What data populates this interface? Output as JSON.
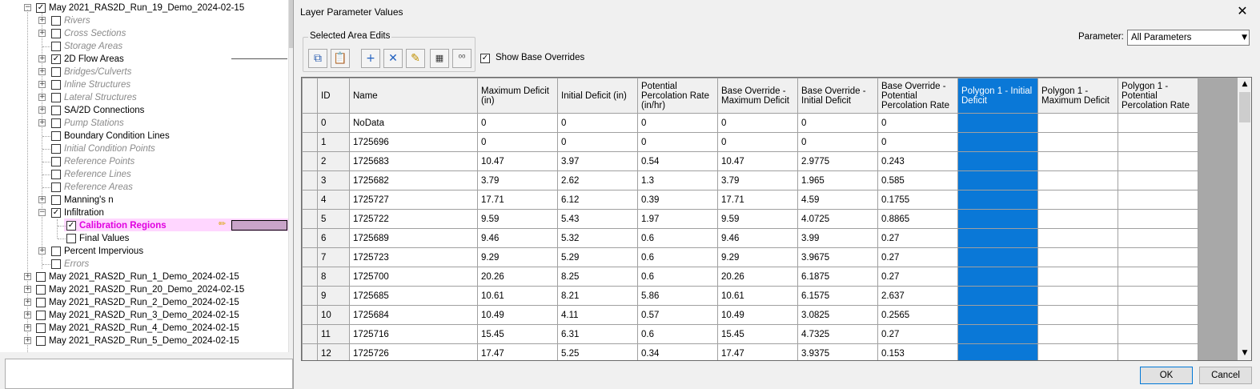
{
  "tree": {
    "root_label": "May 2021_RAS2D_Run_19_Demo_2024-02-15",
    "children": [
      {
        "label": "Rivers",
        "style": "gray",
        "expander": true,
        "checked": false
      },
      {
        "label": "Cross Sections",
        "style": "gray",
        "expander": true,
        "checked": false
      },
      {
        "label": "Storage Areas",
        "style": "gray",
        "expander": false,
        "checked": false
      },
      {
        "label": "2D Flow Areas",
        "style": "normal",
        "expander": true,
        "checked": true
      },
      {
        "label": "Bridges/Culverts",
        "style": "gray",
        "expander": true,
        "checked": false
      },
      {
        "label": "Inline Structures",
        "style": "gray",
        "expander": true,
        "checked": false
      },
      {
        "label": "Lateral Structures",
        "style": "gray",
        "expander": true,
        "checked": false
      },
      {
        "label": "SA/2D Connections",
        "style": "normal",
        "expander": true,
        "checked": false
      },
      {
        "label": "Pump Stations",
        "style": "gray",
        "expander": true,
        "checked": false
      },
      {
        "label": "Boundary Condition Lines",
        "style": "normal",
        "expander": false,
        "checked": false
      },
      {
        "label": "Initial Condition Points",
        "style": "gray",
        "expander": false,
        "checked": false
      },
      {
        "label": "Reference Points",
        "style": "gray",
        "expander": false,
        "checked": false
      },
      {
        "label": "Reference Lines",
        "style": "gray",
        "expander": false,
        "checked": false
      },
      {
        "label": "Reference Areas",
        "style": "gray",
        "expander": false,
        "checked": false
      },
      {
        "label": "Manning's n",
        "style": "normal",
        "expander": true,
        "checked": false
      },
      {
        "label": "Infiltration",
        "style": "normal",
        "expander": "minus",
        "checked": true
      }
    ],
    "infiltration_children": [
      {
        "label": "Calibration Regions",
        "style": "pink",
        "checked": true
      },
      {
        "label": "Final Values",
        "style": "normal",
        "checked": false
      }
    ],
    "after_children": [
      {
        "label": "Percent Impervious",
        "style": "normal",
        "expander": true,
        "checked": false
      },
      {
        "label": "Errors",
        "style": "gray",
        "expander": false,
        "checked": false
      }
    ],
    "runs": [
      "May 2021_RAS2D_Run_1_Demo_2024-02-15",
      "May 2021_RAS2D_Run_20_Demo_2024-02-15",
      "May 2021_RAS2D_Run_2_Demo_2024-02-15",
      "May 2021_RAS2D_Run_3_Demo_2024-02-15",
      "May 2021_RAS2D_Run_4_Demo_2024-02-15",
      "May 2021_RAS2D_Run_5_Demo_2024-02-15"
    ],
    "checkmark": "✓",
    "expand_plus": "+",
    "expand_minus": "−"
  },
  "dialog": {
    "title": "Layer Parameter Values",
    "close_glyph": "✕",
    "group_label": "Selected Area Edits",
    "toolbar_icons": [
      {
        "name": "copy-icon",
        "glyph": "⧉",
        "color": "#2a5db0"
      },
      {
        "name": "paste-icon",
        "glyph": "📋",
        "color": "#a0702a"
      },
      {
        "name": "add-row-icon",
        "glyph": "+",
        "color": "#1f5fbf"
      },
      {
        "name": "delete-row-icon",
        "glyph": "✕",
        "color": "#1f5fbf"
      },
      {
        "name": "fill-icon",
        "glyph": "✎",
        "color": "#c09000"
      },
      {
        "name": "interpolate-icon",
        "glyph": "▦",
        "color": "#333333"
      },
      {
        "name": "decimal-icon",
        "glyph": "⁰⁰",
        "color": "#333333"
      }
    ],
    "show_base_overrides_label": "Show Base Overrides",
    "show_base_overrides_checked": true,
    "parameter_label": "Parameter:",
    "parameter_value": "All Parameters",
    "ok_label": "OK",
    "cancel_label": "Cancel",
    "selection_color": "#0a78d7"
  },
  "grid": {
    "columns": [
      "ID",
      "Name",
      "Maximum Deficit (in)",
      "Initial Deficit (in)",
      "Potential Percolation Rate (in/hr)",
      "Base Override - Maximum Deficit",
      "Base Override - Initial Deficit",
      "Base Override - Potential Percolation Rate",
      "Polygon 1 - Initial Deficit",
      "Polygon 1 - Maximum Deficit",
      "Polygon 1 - Potential Percolation Rate"
    ],
    "selected_column": 8,
    "rows": [
      [
        "0",
        "NoData",
        "0",
        "0",
        "0",
        "0",
        "0",
        "0",
        "",
        "",
        ""
      ],
      [
        "1",
        "1725696",
        "0",
        "0",
        "0",
        "0",
        "0",
        "0",
        "",
        "",
        ""
      ],
      [
        "2",
        "1725683",
        "10.47",
        "3.97",
        "0.54",
        "10.47",
        "2.9775",
        "0.243",
        "",
        "",
        ""
      ],
      [
        "3",
        "1725682",
        "3.79",
        "2.62",
        "1.3",
        "3.79",
        "1.965",
        "0.585",
        "",
        "",
        ""
      ],
      [
        "4",
        "1725727",
        "17.71",
        "6.12",
        "0.39",
        "17.71",
        "4.59",
        "0.1755",
        "",
        "",
        ""
      ],
      [
        "5",
        "1725722",
        "9.59",
        "5.43",
        "1.97",
        "9.59",
        "4.0725",
        "0.8865",
        "",
        "",
        ""
      ],
      [
        "6",
        "1725689",
        "9.46",
        "5.32",
        "0.6",
        "9.46",
        "3.99",
        "0.27",
        "",
        "",
        ""
      ],
      [
        "7",
        "1725723",
        "9.29",
        "5.29",
        "0.6",
        "9.29",
        "3.9675",
        "0.27",
        "",
        "",
        ""
      ],
      [
        "8",
        "1725700",
        "20.26",
        "8.25",
        "0.6",
        "20.26",
        "6.1875",
        "0.27",
        "",
        "",
        ""
      ],
      [
        "9",
        "1725685",
        "10.61",
        "8.21",
        "5.86",
        "10.61",
        "6.1575",
        "2.637",
        "",
        "",
        ""
      ],
      [
        "10",
        "1725684",
        "10.49",
        "4.11",
        "0.57",
        "10.49",
        "3.0825",
        "0.2565",
        "",
        "",
        ""
      ],
      [
        "11",
        "1725716",
        "15.45",
        "6.31",
        "0.6",
        "15.45",
        "4.7325",
        "0.27",
        "",
        "",
        ""
      ],
      [
        "12",
        "1725726",
        "17.47",
        "5.25",
        "0.34",
        "17.47",
        "3.9375",
        "0.153",
        "",
        "",
        ""
      ]
    ],
    "scroll_up_glyph": "▲",
    "scroll_down_glyph": "▼"
  }
}
